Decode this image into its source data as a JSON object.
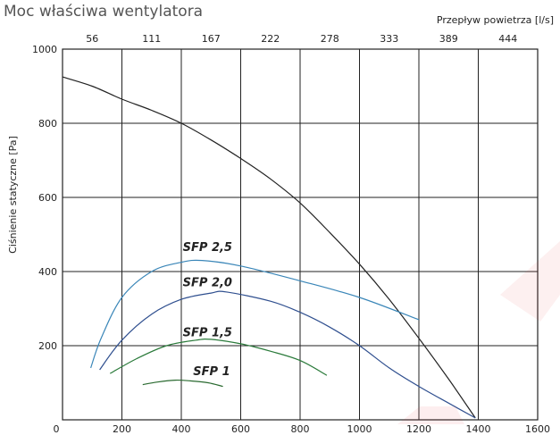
{
  "title": "Moc właściwa wentylatora",
  "chart_data": {
    "type": "line",
    "title": "Moc właściwa wentylatora",
    "xlabel": "",
    "ylabel": "Ciśnienie statyczne [Pa]",
    "x2label": "Przepływ powietrza [l/s]",
    "xlim": [
      0,
      1600
    ],
    "ylim": [
      0,
      1000
    ],
    "xticks": [
      0,
      200,
      400,
      600,
      800,
      1000,
      1200,
      1400,
      1600
    ],
    "yticks": [
      200,
      400,
      600,
      800,
      1000
    ],
    "x2ticks": [
      "56",
      "111",
      "167",
      "222",
      "278",
      "333",
      "389",
      "444"
    ],
    "grid": true,
    "series": [
      {
        "name": "",
        "color": "#222222",
        "points": [
          [
            0,
            925
          ],
          [
            100,
            900
          ],
          [
            200,
            865
          ],
          [
            300,
            835
          ],
          [
            400,
            800
          ],
          [
            500,
            755
          ],
          [
            600,
            705
          ],
          [
            700,
            650
          ],
          [
            800,
            585
          ],
          [
            900,
            505
          ],
          [
            1000,
            420
          ],
          [
            1100,
            325
          ],
          [
            1200,
            220
          ],
          [
            1300,
            110
          ],
          [
            1390,
            5
          ]
        ]
      },
      {
        "name": "SFP 2,5",
        "color": "#3a86b8",
        "points": [
          [
            95,
            140
          ],
          [
            130,
            220
          ],
          [
            200,
            330
          ],
          [
            300,
            400
          ],
          [
            400,
            425
          ],
          [
            470,
            430
          ],
          [
            600,
            415
          ],
          [
            800,
            375
          ],
          [
            1000,
            330
          ],
          [
            1200,
            270
          ]
        ]
      },
      {
        "name": "SFP 2,0",
        "color": "#2f4f8f",
        "points": [
          [
            125,
            135
          ],
          [
            200,
            215
          ],
          [
            300,
            285
          ],
          [
            400,
            325
          ],
          [
            500,
            342
          ],
          [
            550,
            345
          ],
          [
            700,
            320
          ],
          [
            800,
            290
          ],
          [
            900,
            250
          ],
          [
            1000,
            200
          ],
          [
            1100,
            140
          ],
          [
            1200,
            90
          ],
          [
            1300,
            45
          ],
          [
            1390,
            5
          ]
        ]
      },
      {
        "name": "SFP 1,5",
        "color": "#2a7a3a",
        "points": [
          [
            160,
            125
          ],
          [
            250,
            165
          ],
          [
            350,
            200
          ],
          [
            450,
            215
          ],
          [
            500,
            217
          ],
          [
            600,
            205
          ],
          [
            700,
            185
          ],
          [
            800,
            160
          ],
          [
            890,
            120
          ]
        ]
      },
      {
        "name": "SFP 1",
        "color": "#2a6a30",
        "points": [
          [
            270,
            95
          ],
          [
            320,
            102
          ],
          [
            380,
            107
          ],
          [
            430,
            105
          ],
          [
            490,
            100
          ],
          [
            540,
            90
          ]
        ]
      }
    ],
    "series_labels": [
      {
        "text": "SFP 2,5",
        "x": 405,
        "y": 455
      },
      {
        "text": "SFP 2,0",
        "x": 405,
        "y": 360
      },
      {
        "text": "SFP 1,5",
        "x": 405,
        "y": 225
      },
      {
        "text": "SFP 1",
        "x": 440,
        "y": 120
      }
    ]
  }
}
